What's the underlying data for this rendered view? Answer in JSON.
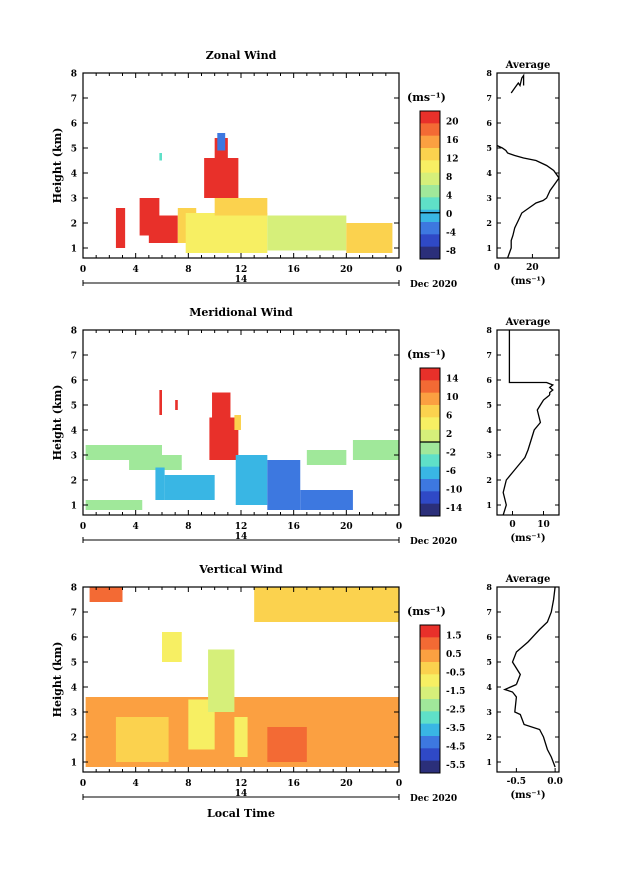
{
  "chart_data": [
    {
      "type": "heatmap",
      "title": "Zonal Wind",
      "ylabel": "Height (km)",
      "x_ticks": [
        "0",
        "4",
        "8",
        "12",
        "16",
        "20",
        "0"
      ],
      "x_range": [
        0,
        24
      ],
      "y_ticks": [
        "1",
        "2",
        "3",
        "4",
        "5",
        "6",
        "7",
        "8"
      ],
      "y_range": [
        0.6,
        8
      ],
      "day_label": "14",
      "month_label": "Dec 2020",
      "colorbar": {
        "unit_label": "(ms⁻¹)",
        "tick_labels": [
          "20",
          "16",
          "12",
          "8",
          "4",
          "0",
          "-4",
          "-8"
        ],
        "range": [
          -10,
          22
        ],
        "zero_line": 0,
        "colors": [
          "#2b2f7a",
          "#2f49c6",
          "#3d78e0",
          "#39b6e4",
          "#5fe0c8",
          "#a0e89a",
          "#d6ef7a",
          "#f7ef63",
          "#fbd24e",
          "#fba041",
          "#f36a34",
          "#e8302a"
        ]
      },
      "regions": [
        {
          "x": [
            2.5,
            3.2
          ],
          "y": [
            1.0,
            2.6
          ],
          "v": 20
        },
        {
          "x": [
            4.3,
            5.8
          ],
          "y": [
            1.5,
            3.0
          ],
          "v": 20
        },
        {
          "x": [
            5.0,
            7.2
          ],
          "y": [
            1.2,
            2.3
          ],
          "v": 20
        },
        {
          "x": [
            7.2,
            8.6
          ],
          "y": [
            1.2,
            2.6
          ],
          "v": 12
        },
        {
          "x": [
            9.2,
            11.8
          ],
          "y": [
            3.0,
            4.6
          ],
          "v": 20
        },
        {
          "x": [
            10.0,
            11.0
          ],
          "y": [
            4.6,
            5.4
          ],
          "v": 20
        },
        {
          "x": [
            10.2,
            10.8
          ],
          "y": [
            4.9,
            5.6
          ],
          "v": -4
        },
        {
          "x": [
            7.8,
            14.0
          ],
          "y": [
            0.8,
            2.4
          ],
          "v": 9
        },
        {
          "x": [
            10.0,
            14.0
          ],
          "y": [
            2.3,
            3.0
          ],
          "v": 13
        },
        {
          "x": [
            14.0,
            20.0
          ],
          "y": [
            0.9,
            2.3
          ],
          "v": 7
        },
        {
          "x": [
            20.0,
            23.5
          ],
          "y": [
            0.8,
            2.0
          ],
          "v": 13
        },
        {
          "x": [
            5.8,
            6.0
          ],
          "y": [
            4.5,
            4.8
          ],
          "v": 2
        }
      ],
      "profile": {
        "title": "Average",
        "xlabel": "(ms⁻¹)",
        "x_ticks": [
          0,
          20
        ],
        "x_range": [
          0,
          35
        ],
        "lines": [
          {
            "x": [
              35,
              32,
              28,
              22,
              15,
              10,
              6,
              5,
              3,
              0
            ],
            "y": [
              3.8,
              4.1,
              4.3,
              4.5,
              4.6,
              4.7,
              4.8,
              4.9,
              5.0,
              5.1
            ]
          },
          {
            "x": [
              35,
              33,
              30,
              28,
              26,
              22,
              18,
              14,
              12,
              10,
              9,
              8,
              8,
              7,
              6
            ],
            "y": [
              3.8,
              3.6,
              3.3,
              3.0,
              2.9,
              2.8,
              2.6,
              2.4,
              2.1,
              1.8,
              1.5,
              1.3,
              1.0,
              0.8,
              0.6
            ]
          },
          {
            "x": [
              8,
              10,
              12,
              13,
              14,
              15,
              15
            ],
            "y": [
              7.2,
              7.4,
              7.6,
              7.5,
              7.8,
              7.9,
              7.5
            ]
          }
        ]
      }
    },
    {
      "type": "heatmap",
      "title": "Meridional Wind",
      "ylabel": "Height (km)",
      "x_ticks": [
        "0",
        "4",
        "8",
        "12",
        "16",
        "20",
        "0"
      ],
      "x_range": [
        0,
        24
      ],
      "y_ticks": [
        "1",
        "2",
        "3",
        "4",
        "5",
        "6",
        "7",
        "8"
      ],
      "y_range": [
        0.6,
        8
      ],
      "day_label": "14",
      "month_label": "Dec 2020",
      "colorbar": {
        "unit_label": "(ms⁻¹)",
        "tick_labels": [
          "14",
          "10",
          "6",
          "2",
          "-2",
          "-6",
          "-10",
          "-14"
        ],
        "range": [
          -16,
          16
        ],
        "zero_line": 0,
        "colors": [
          "#2b2f7a",
          "#2f49c6",
          "#3d78e0",
          "#39b6e4",
          "#5fe0c8",
          "#a0e89a",
          "#d6ef7a",
          "#f7ef63",
          "#fbd24e",
          "#fba041",
          "#f36a34",
          "#e8302a"
        ]
      },
      "regions": [
        {
          "x": [
            0.2,
            6.0
          ],
          "y": [
            2.8,
            3.4
          ],
          "v": -2
        },
        {
          "x": [
            3.5,
            7.5
          ],
          "y": [
            2.4,
            3.0
          ],
          "v": -2
        },
        {
          "x": [
            0.2,
            4.5
          ],
          "y": [
            0.8,
            1.2
          ],
          "v": -2
        },
        {
          "x": [
            5.5,
            6.2
          ],
          "y": [
            1.2,
            2.5
          ],
          "v": -6
        },
        {
          "x": [
            6.2,
            10.0
          ],
          "y": [
            1.2,
            2.2
          ],
          "v": -6
        },
        {
          "x": [
            9.6,
            11.8
          ],
          "y": [
            2.8,
            4.5
          ],
          "v": 14
        },
        {
          "x": [
            9.8,
            11.2
          ],
          "y": [
            4.5,
            5.5
          ],
          "v": 14
        },
        {
          "x": [
            11.5,
            12.0
          ],
          "y": [
            4.0,
            4.6
          ],
          "v": 6
        },
        {
          "x": [
            11.6,
            14.0
          ],
          "y": [
            1.0,
            3.0
          ],
          "v": -6
        },
        {
          "x": [
            14.0,
            16.5
          ],
          "y": [
            0.8,
            2.8
          ],
          "v": -10
        },
        {
          "x": [
            16.5,
            20.5
          ],
          "y": [
            0.8,
            1.6
          ],
          "v": -10
        },
        {
          "x": [
            17.0,
            20.0
          ],
          "y": [
            2.6,
            3.2
          ],
          "v": -2
        },
        {
          "x": [
            20.5,
            24.0
          ],
          "y": [
            2.8,
            3.6
          ],
          "v": -2
        },
        {
          "x": [
            5.8,
            6.0
          ],
          "y": [
            4.6,
            5.6
          ],
          "v": 14
        },
        {
          "x": [
            7.0,
            7.2
          ],
          "y": [
            4.8,
            5.2
          ],
          "v": 14
        }
      ],
      "profile": {
        "title": "Average",
        "xlabel": "(ms⁻¹)",
        "x_ticks": [
          0,
          10
        ],
        "x_range": [
          -5,
          15
        ],
        "lines": [
          {
            "x": [
              -1,
              -1,
              -1,
              -1,
              11,
              13,
              12,
              13,
              12,
              12
            ],
            "y": [
              8.0,
              7.5,
              6.5,
              5.9,
              5.9,
              5.8,
              5.7,
              5.6,
              5.5,
              5.4
            ]
          },
          {
            "x": [
              12,
              10,
              9,
              8,
              9,
              7,
              6,
              5,
              4,
              2,
              0,
              -2,
              -3,
              -2,
              -3
            ],
            "y": [
              5.4,
              5.2,
              5.0,
              4.8,
              4.3,
              4.0,
              3.6,
              3.2,
              2.9,
              2.6,
              2.3,
              2.0,
              1.5,
              1.0,
              0.6
            ]
          }
        ]
      }
    },
    {
      "type": "heatmap",
      "title": "Vertical Wind",
      "ylabel": "Height (km)",
      "xlabel": "Local Time",
      "x_ticks": [
        "0",
        "4",
        "8",
        "12",
        "16",
        "20",
        "0"
      ],
      "x_range": [
        0,
        24
      ],
      "y_ticks": [
        "1",
        "2",
        "3",
        "4",
        "5",
        "6",
        "7",
        "8"
      ],
      "y_range": [
        0.6,
        8
      ],
      "day_label": "14",
      "month_label": "Dec 2020",
      "colorbar": {
        "unit_label": "(ms⁻¹)",
        "tick_labels": [
          "1.5",
          "0.5",
          "-0.5",
          "-1.5",
          "-2.5",
          "-3.5",
          "-4.5",
          "-5.5"
        ],
        "range": [
          -6,
          2
        ],
        "zero_line": null,
        "colors": [
          "#2b2f7a",
          "#2f49c6",
          "#3d78e0",
          "#39b6e4",
          "#5fe0c8",
          "#a0e89a",
          "#d6ef7a",
          "#f7ef63",
          "#fbd24e",
          "#fba041",
          "#f36a34",
          "#e8302a"
        ]
      },
      "regions": [
        {
          "x": [
            0.2,
            24.0
          ],
          "y": [
            0.8,
            3.6
          ],
          "v": 0.3
        },
        {
          "x": [
            2.5,
            6.5
          ],
          "y": [
            1.0,
            2.8
          ],
          "v": -0.6
        },
        {
          "x": [
            8.0,
            10.0
          ],
          "y": [
            1.5,
            3.5
          ],
          "v": -1.0
        },
        {
          "x": [
            9.5,
            11.5
          ],
          "y": [
            3.0,
            5.5
          ],
          "v": -1.4
        },
        {
          "x": [
            6.0,
            7.5
          ],
          "y": [
            5.0,
            6.2
          ],
          "v": -1.0
        },
        {
          "x": [
            11.5,
            12.5
          ],
          "y": [
            1.2,
            2.8
          ],
          "v": -1.2
        },
        {
          "x": [
            0.5,
            3.0
          ],
          "y": [
            7.4,
            8.0
          ],
          "v": 0.8
        },
        {
          "x": [
            13.0,
            24.0
          ],
          "y": [
            6.6,
            8.0
          ],
          "v": -0.2
        },
        {
          "x": [
            14.0,
            17.0
          ],
          "y": [
            1.0,
            2.4
          ],
          "v": 1.0
        }
      ],
      "profile": {
        "title": "Average",
        "xlabel": "(ms⁻¹)",
        "x_ticks": [
          -0.5,
          0.0
        ],
        "x_range": [
          -0.75,
          0.05
        ],
        "lines": [
          {
            "x": [
              0.0,
              -0.02,
              -0.05,
              -0.1,
              -0.2,
              -0.35,
              -0.5,
              -0.55,
              -0.45,
              -0.5
            ],
            "y": [
              8.0,
              7.5,
              7.0,
              6.6,
              6.3,
              5.8,
              5.4,
              5.0,
              4.5,
              4.1
            ]
          },
          {
            "x": [
              -0.5,
              -0.65,
              -0.55,
              -0.5,
              -0.52,
              -0.45,
              -0.4,
              -0.2,
              -0.15,
              -0.1,
              -0.05,
              0.0
            ],
            "y": [
              4.1,
              3.9,
              3.8,
              3.6,
              3.0,
              2.9,
              2.5,
              2.3,
              2.0,
              1.5,
              1.2,
              0.8
            ]
          }
        ]
      }
    }
  ]
}
